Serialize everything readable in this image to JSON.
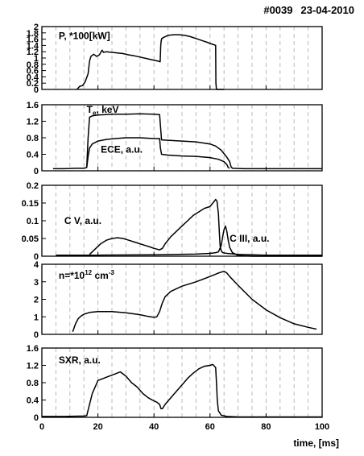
{
  "header": {
    "shot": "#0039",
    "date": "23-04-2010"
  },
  "chart_data": {
    "type": "line",
    "xlim": [
      0,
      100
    ],
    "xticks": [
      0,
      20,
      40,
      60,
      80,
      100
    ],
    "xlabel": "time, [ms]",
    "grid": "vertical dashed lines every 5 ms",
    "panels": [
      {
        "id": "power",
        "ylim": [
          0,
          2
        ],
        "yticks": [
          "0",
          "0.2",
          "0.4",
          "0.6",
          "0.8",
          "1",
          "1.2",
          "1.4",
          "1.6",
          "1.8",
          "2"
        ],
        "labels": [
          {
            "text": "P, *100[kW]",
            "x": 6,
            "y": 1.7
          }
        ],
        "series": [
          {
            "x": [
              12.5,
              13.5,
              14.5,
              15.5,
              16.5,
              17,
              17.5,
              18.5,
              19.5,
              20.5,
              21.5,
              22,
              23,
              25,
              27,
              29,
              31,
              33,
              35,
              37,
              39,
              40.5,
              41.5,
              42.2,
              42.4,
              42.6,
              42.8,
              43.5,
              45,
              47,
              49,
              51,
              53,
              55,
              57,
              59,
              60.5,
              61.5,
              62,
              62.1,
              62.3,
              63,
              65
            ],
            "y": [
              0,
              0.1,
              0.12,
              0.25,
              0.5,
              0.9,
              1.05,
              1.12,
              1.05,
              1.1,
              1.25,
              1.18,
              1.2,
              1.18,
              1.16,
              1.14,
              1.1,
              1.07,
              1.03,
              0.99,
              0.95,
              0.92,
              0.9,
              0.88,
              1.4,
              1.55,
              1.62,
              1.66,
              1.72,
              1.74,
              1.74,
              1.72,
              1.68,
              1.62,
              1.56,
              1.5,
              1.45,
              1.42,
              1.4,
              0.2,
              0,
              0,
              0
            ]
          }
        ]
      },
      {
        "id": "te-ece",
        "ylim": [
          0,
          1.6
        ],
        "yticks": [
          "0",
          "0.4",
          "0.8",
          "1.2",
          "1.6"
        ],
        "labels": [
          {
            "text": "T",
            "sub": "e",
            "rest": ", keV",
            "x": 16,
            "y": 1.48
          },
          {
            "text": "ECE, a.u.",
            "x": 21,
            "y": 0.52
          }
        ],
        "series": [
          {
            "name": "T_e",
            "x": [
              4,
              8,
              12,
              15,
              16,
              16.5,
              17,
              18,
              20,
              25,
              30,
              35,
              40,
              42,
              42.3,
              42.7,
              45,
              50,
              55,
              60,
              62,
              64,
              66,
              67,
              67.5,
              68,
              72,
              80,
              90,
              100
            ],
            "y": [
              0.05,
              0.05,
              0.06,
              0.06,
              0.08,
              0.8,
              1.3,
              1.33,
              1.35,
              1.37,
              1.37,
              1.38,
              1.37,
              1.36,
              1.1,
              0.75,
              0.74,
              0.72,
              0.7,
              0.65,
              0.6,
              0.5,
              0.33,
              0.22,
              0.1,
              0.06,
              0.05,
              0.05,
              0.05,
              0.05
            ]
          },
          {
            "name": "ECE",
            "x": [
              16,
              16.5,
              17,
              18,
              20,
              23,
              26,
              30,
              35,
              40,
              42,
              42.3,
              42.7,
              45,
              50,
              55,
              60,
              63,
              65,
              66,
              66.5,
              67
            ],
            "y": [
              0.08,
              0.35,
              0.55,
              0.65,
              0.72,
              0.76,
              0.78,
              0.8,
              0.8,
              0.78,
              0.78,
              0.55,
              0.4,
              0.38,
              0.36,
              0.35,
              0.32,
              0.28,
              0.22,
              0.15,
              0.08,
              0.06
            ]
          }
        ]
      },
      {
        "id": "cv-ciii",
        "ylim": [
          0,
          0.2
        ],
        "yticks": [
          "0",
          "0.05",
          "0.1",
          "0.15",
          "0.2"
        ],
        "labels": [
          {
            "text": "C V, a.u.",
            "x": 8,
            "y": 0.1
          },
          {
            "text": "C III, a.u.",
            "x": 67,
            "y": 0.05
          }
        ],
        "series": [
          {
            "name": "C V",
            "x": [
              17,
              19,
              21,
              23,
              25,
              27,
              29,
              31,
              33,
              35,
              37,
              39,
              40,
              41,
              42,
              43,
              44,
              46,
              48,
              50,
              52,
              54,
              56,
              58,
              60,
              61,
              62,
              62.5,
              63,
              63.3,
              63.6,
              64,
              64.5,
              66,
              70,
              80,
              90,
              100
            ],
            "y": [
              0.005,
              0.02,
              0.035,
              0.045,
              0.05,
              0.052,
              0.05,
              0.045,
              0.04,
              0.035,
              0.03,
              0.025,
              0.022,
              0.02,
              0.018,
              0.022,
              0.035,
              0.055,
              0.07,
              0.085,
              0.1,
              0.115,
              0.125,
              0.135,
              0.14,
              0.15,
              0.16,
              0.155,
              0.12,
              0.07,
              0.03,
              0.015,
              0.01,
              0.008,
              0.005,
              0.003,
              0.003,
              0.003
            ]
          },
          {
            "name": "C III",
            "x": [
              5,
              20,
              40,
              55,
              60,
              62,
              63,
              64,
              64.5,
              65,
              65.5,
              66,
              66.5,
              67,
              68,
              70,
              75,
              80,
              90,
              100
            ],
            "y": [
              0.003,
              0.003,
              0.004,
              0.006,
              0.008,
              0.01,
              0.012,
              0.03,
              0.055,
              0.075,
              0.085,
              0.07,
              0.045,
              0.025,
              0.01,
              0.002,
              -0.005,
              -0.006,
              -0.006,
              -0.006
            ]
          }
        ]
      },
      {
        "id": "density",
        "ylim": [
          0,
          4
        ],
        "yticks": [
          "0",
          "1",
          "2",
          "3",
          "4"
        ],
        "labels": [
          {
            "text": "n=*10",
            "sup": "12",
            "rest": " cm",
            "sup2": "-3",
            "x": 6,
            "y": 3.35
          }
        ],
        "series": [
          {
            "name": "n",
            "x": [
              11,
              12,
              13,
              14,
              15,
              17,
              20,
              25,
              30,
              35,
              38,
              40,
              41,
              42,
              43,
              44,
              46,
              50,
              55,
              60,
              63,
              65,
              66,
              67,
              70,
              75,
              80,
              85,
              90,
              95,
              98
            ],
            "y": [
              0.15,
              0.6,
              0.9,
              1.05,
              1.15,
              1.25,
              1.3,
              1.3,
              1.23,
              1.12,
              1.02,
              0.97,
              1.0,
              1.3,
              1.8,
              2.15,
              2.45,
              2.75,
              3.0,
              3.3,
              3.5,
              3.6,
              3.5,
              3.3,
              2.8,
              2.0,
              1.4,
              0.95,
              0.6,
              0.4,
              0.3
            ]
          }
        ]
      },
      {
        "id": "sxr",
        "ylim": [
          0,
          1.6
        ],
        "yticks": [
          "0",
          "0.4",
          "0.8",
          "1.2",
          "1.6"
        ],
        "labels": [
          {
            "text": "SXR, a.u.",
            "x": 6,
            "y": 1.32
          }
        ],
        "series": [
          {
            "name": "SXR",
            "x": [
              0,
              8,
              15,
              16,
              17,
              18,
              19,
              20,
              22,
              24,
              26,
              28,
              30,
              32,
              34,
              36,
              38,
              40,
              41,
              42,
              42.5,
              43,
              44,
              46,
              48,
              50,
              52,
              54,
              56,
              58,
              60,
              61,
              62,
              62.3,
              62.6,
              63,
              64,
              66,
              70,
              80,
              90,
              100
            ],
            "y": [
              0.02,
              0.02,
              0.03,
              0.04,
              0.3,
              0.55,
              0.7,
              0.85,
              0.9,
              0.95,
              1.0,
              1.05,
              0.95,
              0.8,
              0.7,
              0.55,
              0.45,
              0.38,
              0.35,
              0.3,
              0.2,
              0.2,
              0.3,
              0.45,
              0.6,
              0.75,
              0.9,
              1.02,
              1.12,
              1.18,
              1.2,
              1.22,
              1.15,
              0.8,
              0.4,
              0.15,
              0.05,
              0.02,
              0.01,
              0.01,
              0.01,
              0.01
            ]
          }
        ]
      }
    ]
  }
}
